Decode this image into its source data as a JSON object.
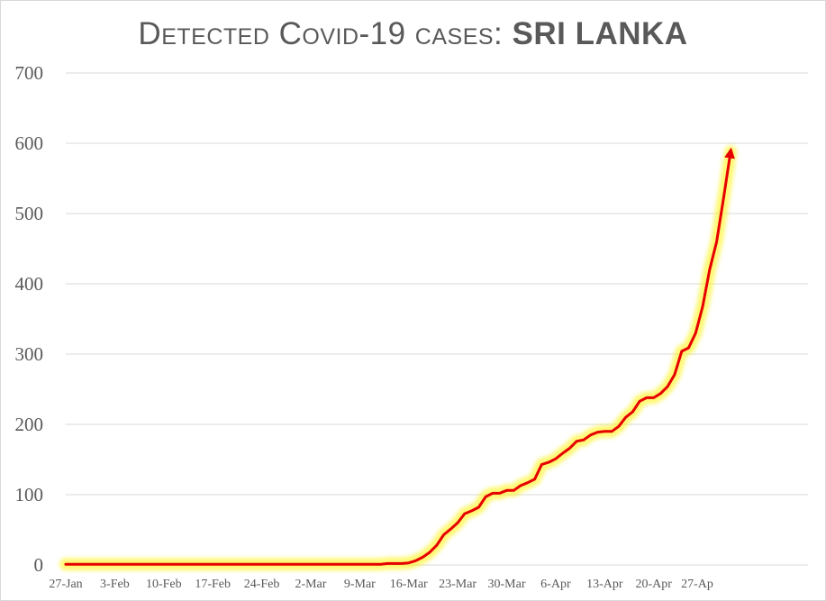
{
  "title": {
    "main": "Detected Covid-19 cases: ",
    "highlight": "SRI LANKA"
  },
  "colors": {
    "line": "#e60000",
    "glow": "#fff200",
    "drop": "#ff7f7f",
    "grid": "#d9d9d9",
    "text": "#595959"
  },
  "chart_data": {
    "type": "line",
    "title": "Detected Covid-19 cases: SRI LANKA",
    "xlabel": "",
    "ylabel": "",
    "ylim": [
      0,
      700
    ],
    "yticks": [
      0,
      100,
      200,
      300,
      400,
      500,
      600,
      700
    ],
    "xticks": [
      "27-Jan",
      "3-Feb",
      "10-Feb",
      "17-Feb",
      "24-Feb",
      "2-Mar",
      "9-Mar",
      "16-Mar",
      "23-Mar",
      "30-Mar",
      "6-Apr",
      "13-Apr",
      "20-Apr",
      "27-Ap"
    ],
    "grid": true,
    "legend": "none",
    "series": [
      {
        "x_start": "27-Jan",
        "x_end": "28-Apr",
        "values": [
          1,
          1,
          1,
          1,
          1,
          1,
          1,
          1,
          1,
          1,
          1,
          1,
          1,
          1,
          1,
          1,
          1,
          1,
          1,
          1,
          1,
          1,
          1,
          1,
          1,
          1,
          1,
          1,
          1,
          1,
          1,
          1,
          1,
          1,
          1,
          1,
          1,
          1,
          1,
          1,
          1,
          1,
          1,
          1,
          1,
          1,
          2,
          2,
          2,
          3,
          6,
          11,
          18,
          28,
          43,
          51,
          60,
          73,
          77,
          82,
          97,
          102,
          102,
          106,
          106,
          113,
          117,
          122,
          143,
          146,
          151,
          159,
          166,
          176,
          178,
          185,
          189,
          190,
          190,
          197,
          210,
          218,
          233,
          238,
          238,
          244,
          254,
          271,
          304,
          309,
          330,
          368,
          420,
          460,
          523,
          588
        ]
      }
    ]
  }
}
